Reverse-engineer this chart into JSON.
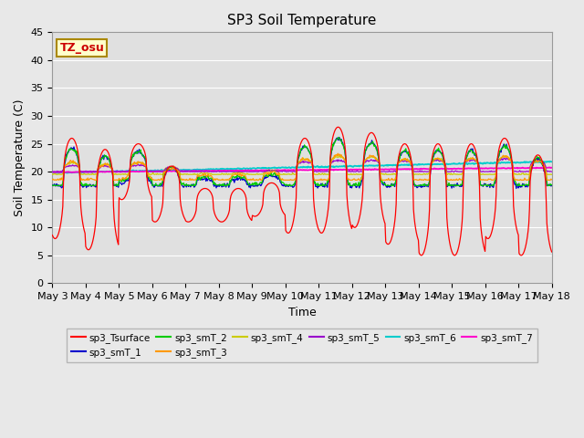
{
  "title": "SP3 Soil Temperature",
  "xlabel": "Time",
  "ylabel": "Soil Temperature (C)",
  "ylim": [
    0,
    45
  ],
  "yticks": [
    0,
    5,
    10,
    15,
    20,
    25,
    30,
    35,
    40,
    45
  ],
  "xtick_labels": [
    "May 3",
    "May 4",
    "May 5",
    "May 6",
    "May 7",
    "May 8",
    "May 9",
    "May 10",
    "May 11",
    "May 12",
    "May 13",
    "May 14",
    "May 15",
    "May 16",
    "May 17",
    "May 18"
  ],
  "annotation": "TZ_osu",
  "series_colors": {
    "sp3_Tsurface": "#ff0000",
    "sp3_smT_1": "#0000cc",
    "sp3_smT_2": "#00cc00",
    "sp3_smT_3": "#ff9900",
    "sp3_smT_4": "#cccc00",
    "sp3_smT_5": "#9900cc",
    "sp3_smT_6": "#00cccc",
    "sp3_smT_7": "#ff00cc"
  },
  "fig_facecolor": "#e8e8e8",
  "plot_facecolor": "#e0e0e0",
  "title_fontsize": 11,
  "label_fontsize": 9,
  "tick_fontsize": 8
}
